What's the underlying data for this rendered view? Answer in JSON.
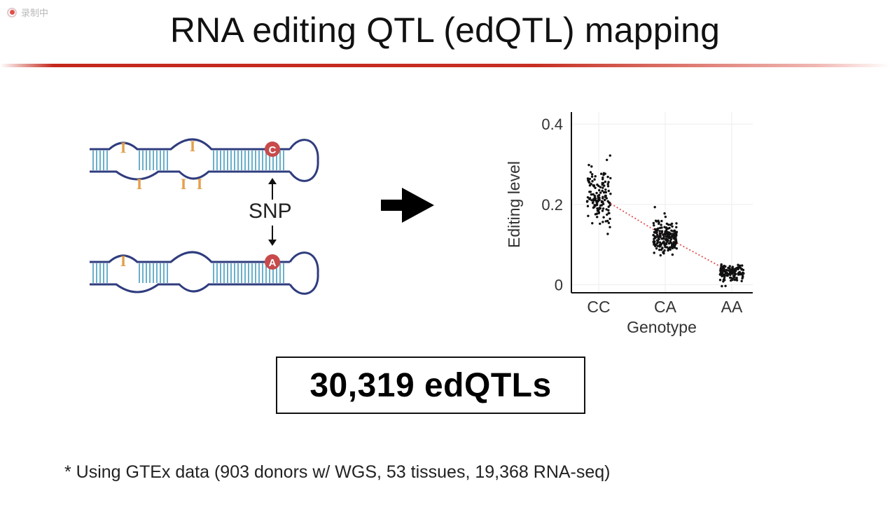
{
  "recorder": {
    "label": "录制中",
    "icon": "record-icon"
  },
  "slide": {
    "title": "RNA editing QTL (edQTL) mapping",
    "accent_color": "#c4281c",
    "diagram": {
      "upper_snp_base": "C",
      "lower_snp_base": "A",
      "snp_label": "SNP",
      "edit_mark": "I",
      "edit_color": "#e3a04a",
      "rna_color": "#2f3c7e",
      "stem_color": "#5aa7c4",
      "snp_color": "#c84a4a"
    },
    "count_text": "30,319 edQTLs",
    "footnote": "* Using GTEx data (903 donors w/ WGS, 53 tissues, 19,368 RNA-seq)"
  },
  "chart_data": {
    "type": "scatter",
    "title": "",
    "xlabel": "Genotype",
    "ylabel": "Editing level",
    "categories": [
      "CC",
      "CA",
      "AA"
    ],
    "ylim": [
      -0.02,
      0.43
    ],
    "yticks": [
      0,
      0.2,
      0.4
    ],
    "ytick_labels": [
      "0",
      "0.2",
      "0.4"
    ],
    "grid": true,
    "trend_color": "#e05050",
    "point_color": "#111111",
    "series": [
      {
        "category": "CC",
        "center": 0.22,
        "spread": 0.07,
        "n": 140
      },
      {
        "category": "CA",
        "center": 0.12,
        "spread": 0.035,
        "n": 200
      },
      {
        "category": "AA",
        "center": 0.03,
        "spread": 0.018,
        "n": 120
      }
    ],
    "trend": [
      0.22,
      0.12,
      0.03
    ]
  }
}
